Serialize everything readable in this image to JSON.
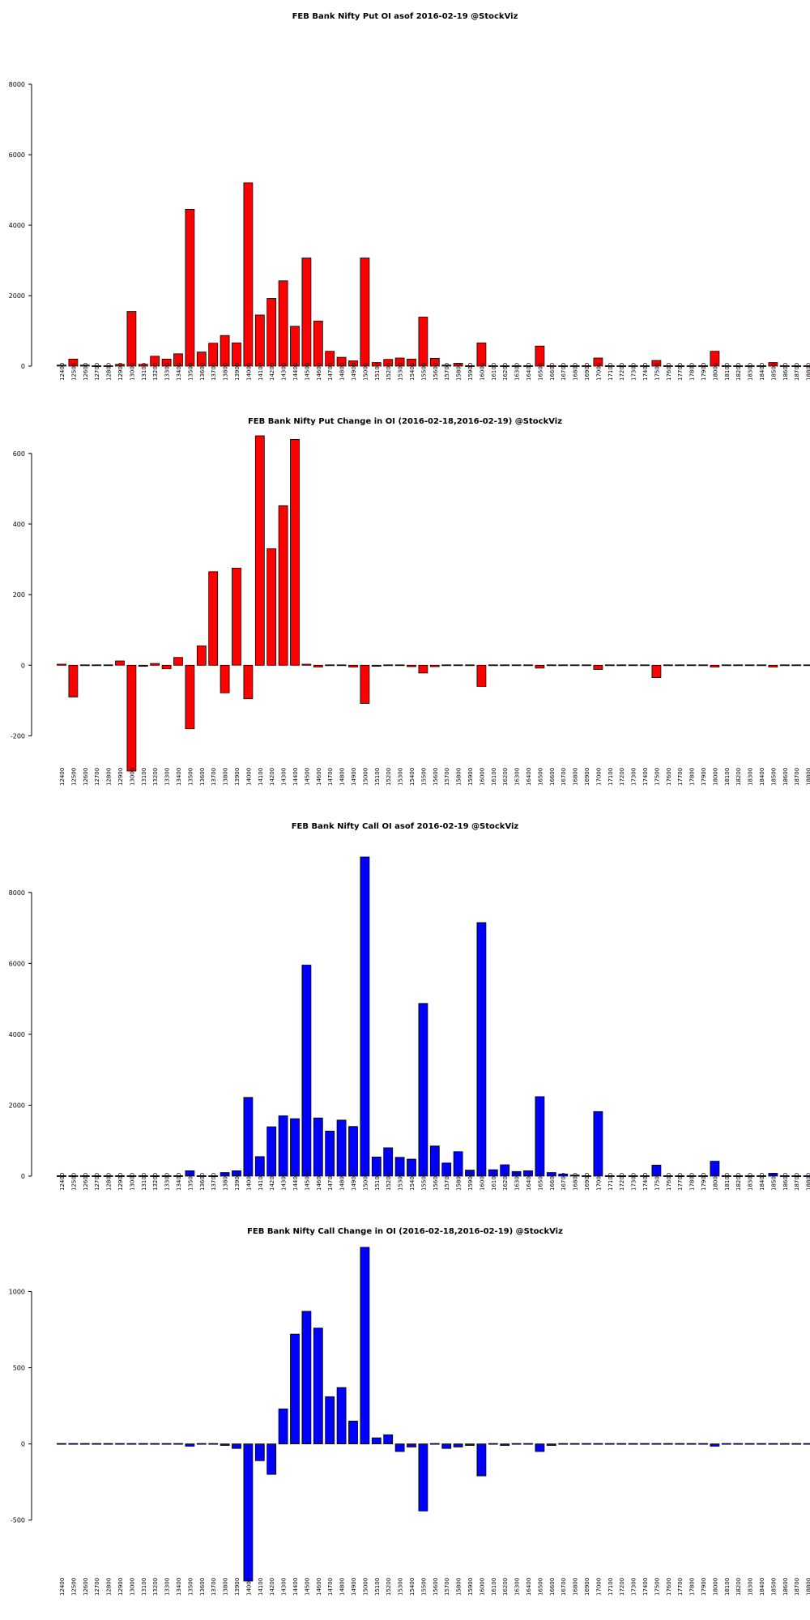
{
  "strikes": [
    "12400",
    "12500",
    "12600",
    "12700",
    "12800",
    "12900",
    "13000",
    "13100",
    "13200",
    "13300",
    "13400",
    "13500",
    "13600",
    "13700",
    "13800",
    "13900",
    "14000",
    "14100",
    "14200",
    "14300",
    "14400",
    "14500",
    "14600",
    "14700",
    "14800",
    "14900",
    "15000",
    "15100",
    "15200",
    "15300",
    "15400",
    "15500",
    "15600",
    "15700",
    "15800",
    "15900",
    "16000",
    "16100",
    "16200",
    "16300",
    "16400",
    "16500",
    "16600",
    "16700",
    "16800",
    "16900",
    "17000",
    "17100",
    "17200",
    "17300",
    "17400",
    "17500",
    "17600",
    "17700",
    "17800",
    "17900",
    "18000",
    "18100",
    "18200",
    "18300",
    "18400",
    "18500",
    "18600",
    "18700",
    "18800"
  ],
  "colors": {
    "put": "#ff0000",
    "call": "#0000ff",
    "stroke": "#000000"
  },
  "chart_data": [
    {
      "type": "bar",
      "title": "FEB Bank Nifty Put OI asof 2016-02-19 @StockViz",
      "color": "#ff0000",
      "ylim": [
        0,
        8000
      ],
      "yticks": [
        0,
        2000,
        4000,
        6000,
        8000
      ],
      "values": [
        30,
        200,
        30,
        10,
        20,
        50,
        1550,
        50,
        280,
        200,
        350,
        4450,
        400,
        650,
        870,
        660,
        5200,
        1450,
        1920,
        2420,
        1130,
        3070,
        1280,
        420,
        250,
        150,
        3070,
        100,
        190,
        230,
        200,
        1390,
        220,
        30,
        80,
        10,
        660,
        10,
        20,
        10,
        10,
        570,
        10,
        10,
        10,
        10,
        230,
        10,
        10,
        10,
        10,
        160,
        10,
        10,
        10,
        10,
        420,
        10,
        10,
        10,
        10,
        100,
        10,
        10,
        10
      ]
    },
    {
      "type": "bar",
      "title": "FEB Bank Nifty Put Change in OI (2016-02-18,2016-02-19) @StockViz",
      "color": "#ff0000",
      "ylim": [
        -300,
        650
      ],
      "yticks": [
        -200,
        0,
        200,
        400,
        600
      ],
      "values": [
        3,
        -90,
        -2,
        -2,
        -2,
        12,
        -300,
        -3,
        5,
        -10,
        22,
        -180,
        55,
        265,
        -78,
        275,
        -95,
        650,
        330,
        452,
        640,
        3,
        -5,
        2,
        2,
        -5,
        -108,
        -3,
        -2,
        -2,
        -4,
        -22,
        -4,
        -2,
        -2,
        -2,
        -60,
        -2,
        -2,
        -2,
        -2,
        -8,
        -2,
        -2,
        -2,
        -2,
        -12,
        -2,
        -2,
        -2,
        -2,
        -35,
        -2,
        -2,
        -2,
        -2,
        -5,
        -2,
        -2,
        -2,
        -2,
        -5,
        -2,
        -2,
        -2
      ]
    },
    {
      "type": "bar",
      "title": "FEB Bank Nifty Call OI asof 2016-02-19 @StockViz",
      "color": "#0000ff",
      "ylim": [
        0,
        9000
      ],
      "yticks": [
        0,
        2000,
        4000,
        6000,
        8000
      ],
      "values": [
        10,
        10,
        10,
        10,
        10,
        10,
        10,
        10,
        10,
        10,
        10,
        150,
        10,
        10,
        100,
        150,
        2220,
        550,
        1390,
        1700,
        1620,
        5950,
        1640,
        1270,
        1580,
        1400,
        9000,
        540,
        800,
        530,
        480,
        4870,
        850,
        370,
        690,
        170,
        7150,
        180,
        320,
        130,
        150,
        2240,
        100,
        60,
        30,
        10,
        1820,
        10,
        10,
        10,
        10,
        310,
        10,
        10,
        10,
        10,
        420,
        10,
        10,
        10,
        10,
        80,
        10,
        10,
        10
      ]
    },
    {
      "type": "bar",
      "title": "FEB Bank Nifty Call Change in OI (2016-02-18,2016-02-19) @StockViz",
      "color": "#0000ff",
      "ylim": [
        -900,
        1300
      ],
      "yticks": [
        -500,
        0,
        500,
        1000
      ],
      "values": [
        0,
        0,
        0,
        0,
        0,
        0,
        0,
        0,
        0,
        0,
        0,
        -15,
        0,
        0,
        -10,
        -30,
        -900,
        -110,
        -200,
        230,
        720,
        870,
        760,
        310,
        370,
        150,
        1290,
        40,
        60,
        -50,
        -20,
        -440,
        0,
        -30,
        -20,
        -10,
        -210,
        -5,
        -10,
        -5,
        -5,
        -50,
        -10,
        -5,
        0,
        0,
        5,
        0,
        0,
        0,
        0,
        5,
        0,
        0,
        0,
        0,
        -15,
        0,
        0,
        0,
        0,
        -5,
        0,
        0,
        0
      ]
    }
  ]
}
